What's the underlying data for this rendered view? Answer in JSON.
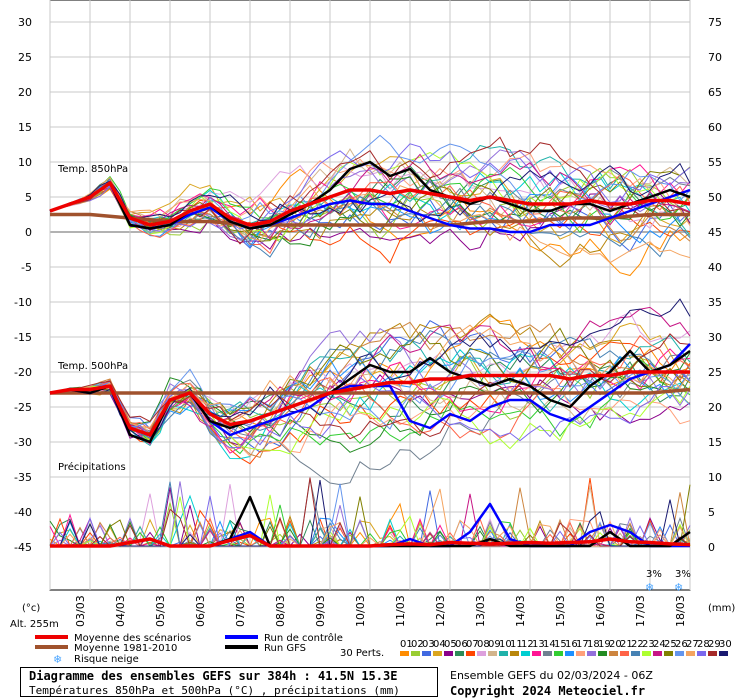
{
  "chart_data": {
    "type": "line",
    "left_axis": {
      "unit_label": "(°c)",
      "ticks": [
        30,
        25,
        20,
        15,
        10,
        5,
        0,
        -5,
        -10,
        -15,
        -20,
        -25,
        -30,
        -35,
        -40,
        -45
      ]
    },
    "right_axis": {
      "unit_label": "(mm)",
      "ticks": [
        75,
        70,
        65,
        60,
        55,
        50,
        45,
        40,
        35,
        30,
        25,
        20,
        15,
        10,
        5,
        0
      ]
    },
    "altitude": "Alt. 255m",
    "x_labels": [
      "03/03",
      "04/03",
      "05/03",
      "06/03",
      "07/03",
      "08/03",
      "09/03",
      "10/03",
      "11/03",
      "12/03",
      "13/03",
      "14/03",
      "15/03",
      "16/03",
      "17/03",
      "18/03"
    ],
    "panel_labels": {
      "t850": "Temp. 850hPa",
      "t500": "Temp. 500hPa",
      "precip": "Précipitations"
    },
    "snow_risk_labels": [
      "3%",
      "3%"
    ],
    "perturbation_count_label": "30 Perts.",
    "perturbation_numbers": [
      "01",
      "02",
      "03",
      "04",
      "05",
      "06",
      "07",
      "08",
      "09",
      "10",
      "11",
      "12",
      "13",
      "14",
      "15",
      "16",
      "17",
      "18",
      "19",
      "20",
      "21",
      "22",
      "23",
      "24",
      "25",
      "26",
      "27",
      "28",
      "29",
      "30"
    ],
    "perturbation_colors": [
      "#ff8c00",
      "#9acd32",
      "#4169e1",
      "#daa520",
      "#8b008b",
      "#2e8b57",
      "#ff4500",
      "#dda0dd",
      "#d2b48c",
      "#20b2aa",
      "#b8860b",
      "#00ced1",
      "#ff1493",
      "#708090",
      "#32cd32",
      "#1e90ff",
      "#ffa07a",
      "#9370db",
      "#228b22",
      "#cd853f",
      "#ff6347",
      "#4682b4",
      "#adff2f",
      "#c71585",
      "#808000",
      "#6495ed",
      "#f4a460",
      "#7b68ee",
      "#a52a2a",
      "#191970"
    ],
    "legend": [
      {
        "label": "Moyenne des scénarios",
        "color": "#ee0000"
      },
      {
        "label": "Moyenne 1981-2010",
        "color": "#a0522d"
      },
      {
        "label": "Risque neige",
        "color": "#4da6ff"
      },
      {
        "label": "Run de contrôle",
        "color": "#0000ff"
      },
      {
        "label": "Run GFS",
        "color": "#000000"
      }
    ],
    "series": [
      {
        "name": "Moyenne des scénarios",
        "panel": "t850",
        "x": [
          0,
          0.5,
          1,
          1.5,
          2,
          2.5,
          3,
          3.5,
          4,
          4.5,
          5,
          5.5,
          6,
          6.5,
          7,
          7.5,
          8,
          8.5,
          9,
          9.5,
          10,
          10.5,
          11,
          11.5,
          12,
          12.5,
          13,
          13.5,
          14,
          14.5,
          15,
          15.5,
          16
        ],
        "values": [
          3,
          4,
          5,
          7,
          2,
          1,
          1.5,
          3,
          4,
          2,
          1,
          1.5,
          3,
          4,
          5,
          6,
          6,
          5.5,
          6,
          5.5,
          5,
          4.5,
          5,
          4.5,
          4,
          4,
          4,
          4.5,
          4,
          4,
          4.5,
          4.5,
          4
        ]
      },
      {
        "name": "Moyenne 1981-2010",
        "panel": "t850",
        "x": [
          0,
          1,
          2,
          3,
          4,
          5,
          6,
          7,
          8,
          9,
          10,
          11,
          12,
          13,
          14,
          15,
          16
        ],
        "values": [
          2.5,
          2.5,
          2,
          1.5,
          1.5,
          1,
          1,
          1,
          1,
          1,
          1,
          1.5,
          1.5,
          2,
          2,
          2.5,
          2.5
        ]
      },
      {
        "name": "Run de contrôle",
        "panel": "t850",
        "x": [
          0,
          0.5,
          1,
          1.5,
          2,
          2.5,
          3,
          3.5,
          4,
          4.5,
          5,
          5.5,
          6,
          6.5,
          7,
          7.5,
          8,
          8.5,
          9,
          9.5,
          10,
          10.5,
          11,
          11.5,
          12,
          12.5,
          13,
          13.5,
          14,
          14.5,
          15,
          15.5,
          16
        ],
        "values": [
          3,
          4,
          5,
          7,
          1,
          0.5,
          1,
          2.5,
          3.5,
          1.5,
          0.5,
          1,
          2,
          3,
          4,
          4.5,
          4,
          4,
          3,
          2,
          1,
          0.5,
          0.5,
          0,
          0,
          1,
          1,
          1,
          2,
          3,
          4,
          5,
          6
        ]
      },
      {
        "name": "Run GFS",
        "panel": "t850",
        "x": [
          0,
          0.5,
          1,
          1.5,
          2,
          2.5,
          3,
          3.5,
          4,
          4.5,
          5,
          5.5,
          6,
          6.5,
          7,
          7.5,
          8,
          8.5,
          9,
          9.5,
          10,
          10.5,
          11,
          11.5,
          12,
          12.5,
          13,
          13.5,
          14,
          14.5,
          15,
          15.5,
          16
        ],
        "values": [
          3,
          4,
          5,
          7,
          1,
          0.5,
          1,
          3,
          4,
          1.5,
          0.5,
          1,
          2.5,
          4,
          6,
          9,
          10,
          8,
          9,
          6,
          5,
          4,
          5,
          4,
          3,
          3,
          4,
          4,
          3,
          4,
          5,
          6,
          5
        ]
      },
      {
        "name": "Moyenne des scénarios",
        "panel": "t500",
        "x": [
          0,
          0.5,
          1,
          1.5,
          2,
          2.5,
          3,
          3.5,
          4,
          4.5,
          5,
          5.5,
          6,
          6.5,
          7,
          7.5,
          8,
          8.5,
          9,
          9.5,
          10,
          10.5,
          11,
          11.5,
          12,
          12.5,
          13,
          13.5,
          14,
          14.5,
          15,
          15.5,
          16
        ],
        "values": [
          -23,
          -22.5,
          -22.5,
          -22,
          -28,
          -29,
          -24,
          -23,
          -26,
          -27.5,
          -27,
          -26,
          -25,
          -24,
          -23,
          -22.5,
          -22,
          -21.5,
          -21.5,
          -21,
          -21,
          -20.5,
          -20.5,
          -20.5,
          -20.5,
          -20.5,
          -21,
          -20.5,
          -20.5,
          -20,
          -20,
          -20,
          -20
        ]
      },
      {
        "name": "Moyenne 1981-2010",
        "panel": "t500",
        "x": [
          0,
          1,
          2,
          3,
          4,
          5,
          6,
          7,
          8,
          9,
          10,
          11,
          12,
          13,
          14,
          15,
          16
        ],
        "values": [
          -23,
          -23,
          -23,
          -23,
          -23,
          -23,
          -23,
          -23,
          -23,
          -23,
          -23,
          -23,
          -23,
          -23,
          -23,
          -23,
          -22.5
        ]
      },
      {
        "name": "Run de contrôle",
        "panel": "t500",
        "x": [
          0,
          0.5,
          1,
          1.5,
          2,
          2.5,
          3,
          3.5,
          4,
          4.5,
          5,
          5.5,
          6,
          6.5,
          7,
          7.5,
          8,
          8.5,
          9,
          9.5,
          10,
          10.5,
          11,
          11.5,
          12,
          12.5,
          13,
          13.5,
          14,
          14.5,
          15,
          15.5,
          16
        ],
        "values": [
          -23,
          -22.5,
          -23,
          -22,
          -29,
          -30,
          -24,
          -23,
          -27,
          -29,
          -28,
          -27,
          -26,
          -25,
          -23,
          -22,
          -22,
          -22,
          -27,
          -28,
          -26,
          -27,
          -25,
          -24,
          -24,
          -26,
          -27,
          -25,
          -23,
          -21,
          -20,
          -19,
          -16
        ]
      },
      {
        "name": "Run GFS",
        "panel": "t500",
        "x": [
          0,
          0.5,
          1,
          1.5,
          2,
          2.5,
          3,
          3.5,
          4,
          4.5,
          5,
          5.5,
          6,
          6.5,
          7,
          7.5,
          8,
          8.5,
          9,
          9.5,
          10,
          10.5,
          11,
          11.5,
          12,
          12.5,
          13,
          13.5,
          14,
          14.5,
          15,
          15.5,
          16
        ],
        "values": [
          -23,
          -22.5,
          -23,
          -22,
          -29,
          -30,
          -24,
          -23,
          -27,
          -28,
          -27,
          -26,
          -25,
          -24,
          -23,
          -21,
          -19,
          -20,
          -20,
          -18,
          -20,
          -21,
          -22,
          -21,
          -22,
          -24,
          -25,
          -22,
          -20,
          -17,
          -20,
          -19,
          -17
        ]
      },
      {
        "name": "Moyenne des scénarios",
        "panel": "precip",
        "unit": "mm",
        "x": [
          0,
          0.5,
          1,
          1.5,
          2,
          2.5,
          3,
          3.5,
          4,
          4.5,
          5,
          5.5,
          6,
          6.5,
          7,
          7.5,
          8,
          8.5,
          9,
          9.5,
          10,
          10.5,
          11,
          11.5,
          12,
          12.5,
          13,
          13.5,
          14,
          14.5,
          15,
          15.5,
          16
        ],
        "values": [
          0,
          0,
          0,
          0,
          0.5,
          1,
          0,
          0,
          0,
          0.8,
          1.5,
          0,
          0,
          0,
          0,
          0,
          0,
          0.2,
          0.3,
          0.2,
          0.5,
          0.4,
          0.3,
          0.4,
          0.5,
          0.4,
          0.5,
          0.6,
          1,
          0.6,
          0.5,
          0.3,
          0.2
        ]
      },
      {
        "name": "Run de contrôle",
        "panel": "precip",
        "unit": "mm",
        "x": [
          0,
          0.5,
          1,
          1.5,
          2,
          2.5,
          3,
          3.5,
          4,
          4.5,
          5,
          5.5,
          6,
          6.5,
          7,
          7.5,
          8,
          8.5,
          9,
          9.5,
          10,
          10.5,
          11,
          11.5,
          12,
          12.5,
          13,
          13.5,
          14,
          14.5,
          15,
          15.5,
          16
        ],
        "values": [
          0,
          0,
          0,
          0,
          0.5,
          1,
          0,
          0,
          0,
          1,
          2,
          0,
          0,
          0,
          0,
          0,
          0,
          0,
          1,
          0,
          0,
          2,
          6,
          1,
          0,
          0,
          0,
          2,
          3,
          2,
          0,
          0,
          0
        ]
      },
      {
        "name": "Run GFS",
        "panel": "precip",
        "unit": "mm",
        "x": [
          0,
          0.5,
          1,
          1.5,
          2,
          2.5,
          3,
          3.5,
          4,
          4.5,
          5,
          5.5,
          6,
          6.5,
          7,
          7.5,
          8,
          8.5,
          9,
          9.5,
          10,
          10.5,
          11,
          11.5,
          12,
          12.5,
          13,
          13.5,
          14,
          14.5,
          15,
          15.5,
          16
        ],
        "values": [
          0,
          0,
          0,
          0,
          0.5,
          1,
          0,
          0,
          0,
          1,
          7,
          0,
          0,
          0,
          0,
          0,
          0,
          0,
          0,
          0,
          0,
          0,
          1,
          0,
          0,
          0,
          0,
          0,
          2,
          0,
          0,
          0,
          2
        ]
      }
    ]
  },
  "footer": {
    "title": "Diagramme des ensembles GEFS sur 384h : 41.5N 15.3E",
    "subtitle": "Températures 850hPa et 500hPa (°C) , précipitations (mm)",
    "ensemble": "Ensemble GEFS du 02/03/2024 - 06Z",
    "copyright": "Copyright 2024 Meteociel.fr"
  }
}
